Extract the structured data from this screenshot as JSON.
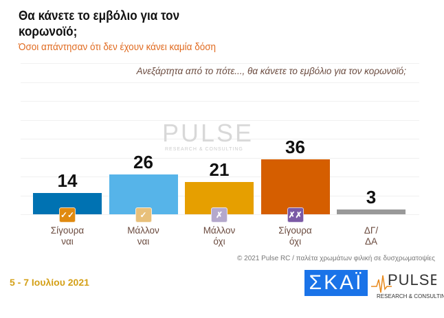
{
  "title": "Θα κάνετε το εμβόλιο για τον κορωνοϊό;",
  "subtitle": "Όσοι απάντησαν ότι δεν έχουν κάνει καμία δόση",
  "question": "Ανεξάρτητα από το πότε..., θα κάνετε το εμβόλιο για τον κορωνοϊό;",
  "watermark": "PULSE",
  "watermark_sub": "RESEARCH & CONSULTING",
  "copyright": "© 2021 Pulse RC  /  παλέτα χρωμάτων φιλική σε δυσχρωματοψίες",
  "date": "5 - 7  Ιουλίου  2021",
  "logos": {
    "skai": "ΣΚΑΪ",
    "pulse": "PULSE",
    "pulse_sub": "RESEARCH & CONSULTING"
  },
  "chart_data": {
    "type": "bar",
    "title": "Θα κάνετε το εμβόλιο για τον κορωνοϊό;",
    "categories": [
      "Σίγουρα\nναι",
      "Μάλλον\nναι",
      "Μάλλον\nόχι",
      "Σίγουρα\nόχι",
      "ΔΓ/\nΔΑ"
    ],
    "values": [
      14,
      26,
      21,
      36,
      3
    ],
    "colors": [
      "#0072b2",
      "#56b4e9",
      "#e69f00",
      "#d55e00",
      "#999999"
    ],
    "icons": [
      {
        "name": "double-check-icon",
        "glyph": "✓✓",
        "color": "#e08a10"
      },
      {
        "name": "check-icon",
        "glyph": "✓",
        "color": "#e8c07a"
      },
      {
        "name": "cross-icon",
        "glyph": "✗",
        "color": "#b4a8cc"
      },
      {
        "name": "double-cross-icon",
        "glyph": "✗✗",
        "color": "#7b5aa6"
      },
      null
    ],
    "ylim": [
      0,
      100
    ],
    "grid": true
  }
}
